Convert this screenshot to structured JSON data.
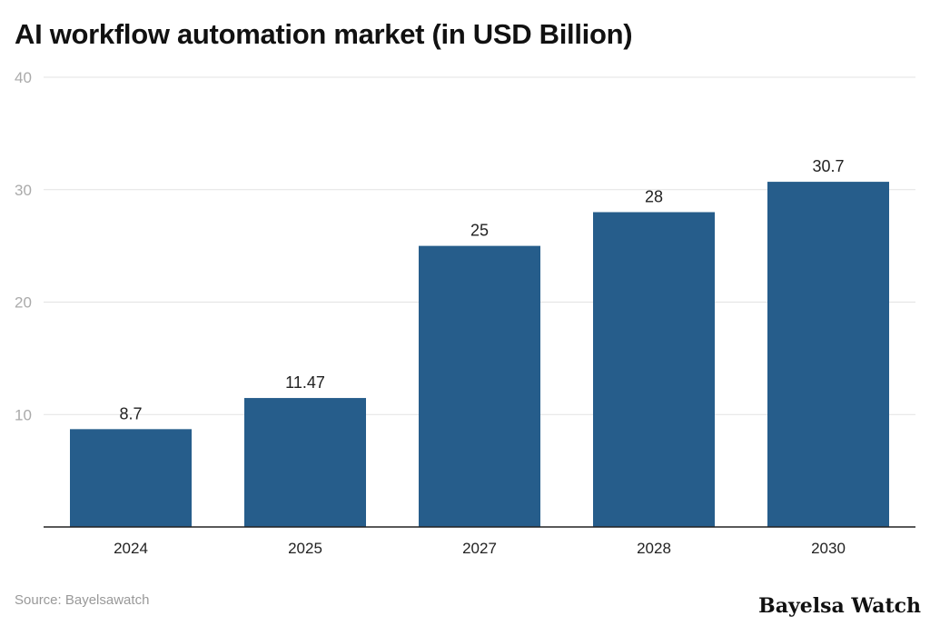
{
  "chart_data": {
    "type": "bar",
    "title": "AI workflow automation market (in USD Billion)",
    "categories": [
      "2024",
      "2025",
      "2027",
      "2028",
      "2030"
    ],
    "values": [
      8.7,
      11.47,
      25,
      28,
      30.7
    ],
    "data_labels": [
      "8.7",
      "11.47",
      "25",
      "28",
      "30.7"
    ],
    "ylim": [
      0,
      40
    ],
    "yticks": [
      10,
      20,
      30,
      40
    ],
    "grid": true,
    "bar_color": "#265d8b",
    "xlabel": "",
    "ylabel": ""
  },
  "footer": {
    "source": "Source: Bayelsawatch",
    "logo": "Bayelsa Watch"
  }
}
